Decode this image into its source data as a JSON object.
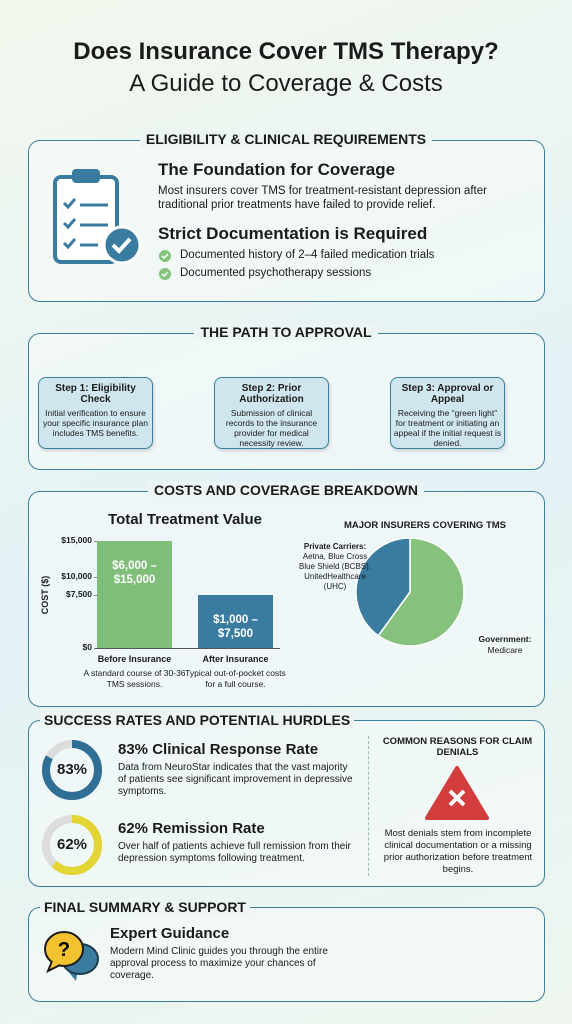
{
  "header": {
    "title_line1": "Does Insurance Cover TMS Therapy?",
    "title_line2": "A Guide to Coverage & Costs"
  },
  "eligibility": {
    "heading": "ELIGIBILITY & CLINICAL REQUIREMENTS",
    "foundation_title": "The Foundation for Coverage",
    "foundation_text": "Most insurers cover TMS for treatment-resistant depression after traditional prior treatments have failed to provide relief.",
    "documentation_title": "Strict Documentation is Required",
    "checklist": [
      "Documented history of 2–4 failed medication trials",
      "Documented psychotherapy sessions"
    ]
  },
  "approval": {
    "heading": "THE PATH TO APPROVAL",
    "steps": [
      {
        "title": "Step 1: Eligibility Check",
        "text": "Initial verification to ensure your specific insurance plan includes TMS benefits."
      },
      {
        "title": "Step 2: Prior Authorization",
        "text": "Submission of clinical records to the insurance provider for medical necessity review."
      },
      {
        "title": "Step 3: Approval or Appeal",
        "text": "Receiving the “green light” for treatment or initiating an appeal if the initial request is denied."
      }
    ]
  },
  "costs": {
    "heading": "COSTS AND COVERAGE BREAKDOWN",
    "bar_chart": {
      "type": "bar",
      "title": "Total Treatment Value",
      "y_label": "COST ($)",
      "categories": [
        "Before Insurance",
        "After Insurance"
      ],
      "values": [
        15000,
        7500
      ],
      "bar_texts": [
        "$6,000 – $15,000",
        "$1,000 – $7,500"
      ],
      "colors": [
        "#7fbe79",
        "#3a7ca0"
      ],
      "notes": [
        "A standard course of 30-36 TMS sessions.",
        "Typical out-of-pocket costs for a full course."
      ],
      "ylim": [
        0,
        15000
      ],
      "yticks": [
        {
          "value": 0,
          "label": "$0"
        },
        {
          "value": 7500,
          "label": "$7,500"
        },
        {
          "value": 10000,
          "label": "$10,000"
        },
        {
          "value": 15000,
          "label": "$15,000"
        }
      ]
    },
    "pie_chart": {
      "type": "pie",
      "title": "MAJOR INSURERS COVERING TMS",
      "slices": [
        {
          "label": "Private Carriers:",
          "detail": "Aetna, Blue Cross Blue Shield (BCBS), UnitedHealthcare (UHC)",
          "value": 40,
          "color": "#3a7ca0"
        },
        {
          "label": "Government:",
          "detail": "Medicare",
          "value": 60,
          "color": "#86c27e"
        }
      ]
    }
  },
  "success": {
    "heading": "SUCCESS RATES AND POTENTIAL HURDLES",
    "metrics": [
      {
        "value": 83,
        "value_label": "83%",
        "title": "83% Clinical Response Rate",
        "text": "Data from NeuroStar indicates that the vast majority of patients see significant improvement in depressive symptoms.",
        "color": "#2f6f96"
      },
      {
        "value": 62,
        "value_label": "62%",
        "title": "62% Remission Rate",
        "text": "Over half of patients achieve full remission from their depression symptoms following treatment.",
        "color": "#e3d534"
      }
    ],
    "denials": {
      "title": "COMMON REASONS FOR CLAIM DENIALS",
      "text": "Most denials stem from incomplete clinical documentation or a missing prior authorization before treatment begins."
    }
  },
  "summary": {
    "heading": "FINAL SUMMARY & SUPPORT",
    "title": "Expert Guidance",
    "text": "Modern Mind Clinic guides you through the entire approval process to maximize your chances of coverage."
  }
}
